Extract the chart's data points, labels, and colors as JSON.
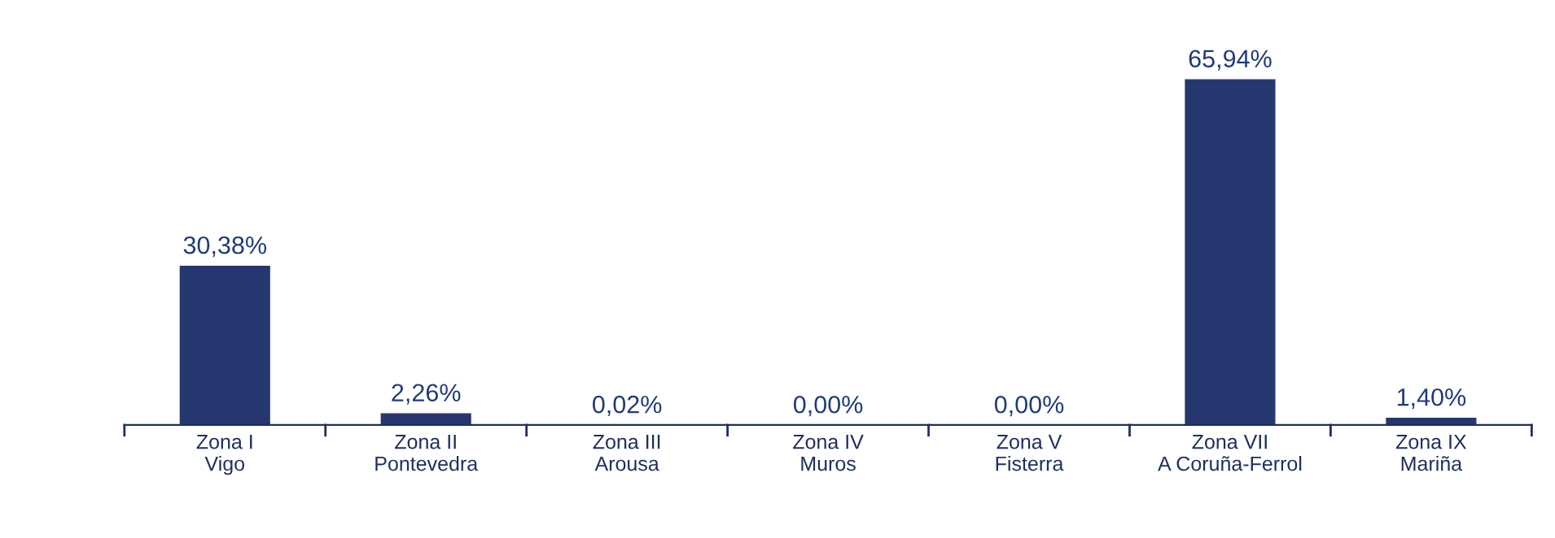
{
  "chart_data": {
    "type": "bar",
    "categories": [
      "Zona I\nVigo",
      "Zona II\nPontevedra",
      "Zona III\nArousa",
      "Zona IV\nMuros",
      "Zona V\nFisterra",
      "Zona VII\nA Coruña-Ferrol",
      "Zona IX\nMariña"
    ],
    "values": [
      30.38,
      2.26,
      0.02,
      0.0,
      0.0,
      65.94,
      1.4
    ],
    "value_labels": [
      "30,38%",
      "2,26%",
      "0,02%",
      "0,00%",
      "0,00%",
      "65,94%",
      "1,40%"
    ],
    "color": "#26376f",
    "grid": false,
    "legend": false
  }
}
